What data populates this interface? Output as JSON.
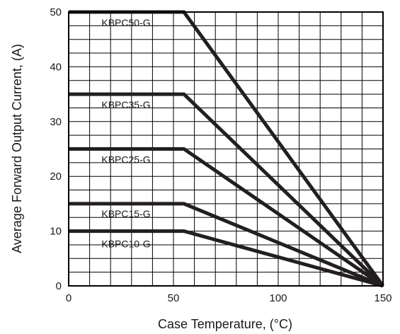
{
  "chart_data": {
    "type": "line",
    "xlabel": "Case Temperature, (°C)",
    "ylabel": "Average Forward Output Current, (A)",
    "xlim": [
      0,
      150
    ],
    "ylim": [
      0,
      50
    ],
    "x_ticks": [
      0,
      50,
      100,
      150
    ],
    "y_ticks": [
      0,
      10,
      20,
      30,
      40,
      50
    ],
    "grid": true,
    "legend": "none (series labeled inline)",
    "series": [
      {
        "name": "KBPC50-G",
        "x": [
          0,
          55,
          150
        ],
        "y": [
          50,
          50,
          0
        ]
      },
      {
        "name": "KBPC35-G",
        "x": [
          0,
          55,
          150
        ],
        "y": [
          35,
          35,
          0
        ]
      },
      {
        "name": "KBPC25-G",
        "x": [
          0,
          55,
          150
        ],
        "y": [
          25,
          25,
          0
        ]
      },
      {
        "name": "KBPC15-G",
        "x": [
          0,
          55,
          150
        ],
        "y": [
          15,
          15,
          0
        ]
      },
      {
        "name": "KBPC10-G",
        "x": [
          0,
          55,
          150
        ],
        "y": [
          10,
          10,
          0
        ]
      }
    ]
  }
}
